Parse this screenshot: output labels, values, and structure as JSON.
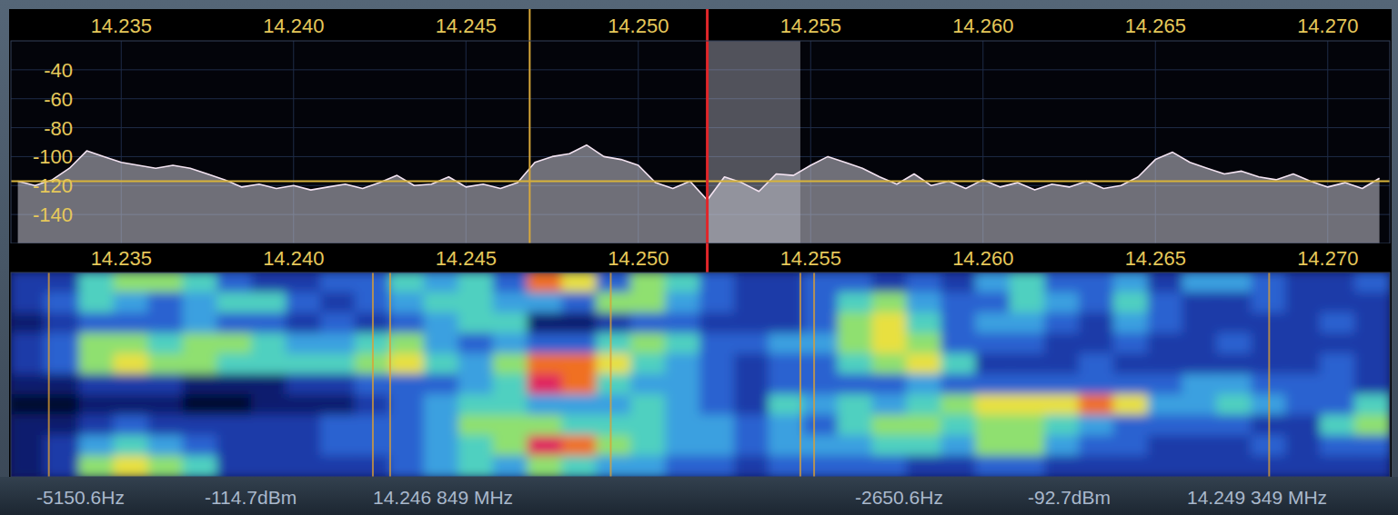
{
  "chart_data": [
    {
      "type": "line",
      "x": [
        14.232,
        14.2325,
        14.233,
        14.2335,
        14.234,
        14.2345,
        14.235,
        14.2355,
        14.236,
        14.2365,
        14.237,
        14.2375,
        14.238,
        14.2385,
        14.239,
        14.2395,
        14.24,
        14.2405,
        14.241,
        14.2415,
        14.242,
        14.2425,
        14.243,
        14.2435,
        14.244,
        14.2445,
        14.245,
        14.2455,
        14.246,
        14.2465,
        14.247,
        14.2475,
        14.248,
        14.2485,
        14.249,
        14.2495,
        14.25,
        14.2505,
        14.251,
        14.2515,
        14.252,
        14.2525,
        14.253,
        14.2535,
        14.254,
        14.2545,
        14.255,
        14.2555,
        14.256,
        14.2565,
        14.257,
        14.2575,
        14.258,
        14.2585,
        14.259,
        14.2595,
        14.26,
        14.2605,
        14.261,
        14.2615,
        14.262,
        14.2625,
        14.263,
        14.2635,
        14.264,
        14.2645,
        14.265,
        14.2655,
        14.266,
        14.2665,
        14.267,
        14.2675,
        14.268,
        14.2685,
        14.269,
        14.2695,
        14.27,
        14.2705,
        14.271,
        14.2715
      ],
      "values": [
        -117,
        -120,
        -116,
        -108,
        -96,
        -100,
        -104,
        -106,
        -108,
        -106,
        -108,
        -112,
        -116,
        -121,
        -119,
        -122,
        -120,
        -123,
        -121,
        -119,
        -122,
        -118,
        -113,
        -120,
        -119,
        -114,
        -121,
        -119,
        -122,
        -118,
        -104,
        -100,
        -98,
        -92,
        -100,
        -102,
        -106,
        -118,
        -122,
        -117,
        -130,
        -114,
        -118,
        -124,
        -112,
        -113,
        -106,
        -100,
        -104,
        -108,
        -114,
        -119,
        -112,
        -120,
        -117,
        -122,
        -116,
        -121,
        -118,
        -123,
        -119,
        -121,
        -117,
        -122,
        -120,
        -114,
        -102,
        -97,
        -104,
        -108,
        -112,
        -110,
        -114,
        -116,
        -112,
        -117,
        -121,
        -118,
        -122,
        -115
      ],
      "xlim": [
        14.2318,
        14.2718
      ],
      "ylim": [
        -160,
        -20
      ],
      "xticks": [
        14.235,
        {
          "value": 14.24,
          "label": "14.240"
        },
        14.245,
        {
          "value": 14.25,
          "label": "14.250"
        },
        14.255,
        {
          "value": 14.26,
          "label": "14.260"
        },
        14.265,
        {
          "value": 14.27,
          "label": "14.270"
        }
      ],
      "yticks": [
        -40,
        -60,
        -80,
        -100,
        -120,
        -140
      ],
      "grid": true,
      "color": "#f4e4f2",
      "cursor": 14.246849,
      "tuned": 14.252,
      "passband": [
        14.252,
        14.2547
      ],
      "threshold": -117
    },
    {
      "type": "heatmap",
      "x": [
        14.2323,
        14.2333,
        14.2343,
        14.2353,
        14.2363,
        14.2373,
        14.2383,
        14.2393,
        14.2403,
        14.2413,
        14.2423,
        14.2433,
        14.2443,
        14.2453,
        14.2463,
        14.2473,
        14.2483,
        14.2493,
        14.2503,
        14.2513,
        14.2523,
        14.2533,
        14.2543,
        14.2553,
        14.2563,
        14.2573,
        14.2583,
        14.2593,
        14.2603,
        14.2613,
        14.2623,
        14.2633,
        14.2643,
        14.2653,
        14.2663,
        14.2673,
        14.2683,
        14.2693,
        14.2703,
        14.2713
      ],
      "xlim": [
        14.2318,
        14.2718
      ],
      "xticks": [
        14.235,
        {
          "value": 14.24,
          "label": "14.240"
        },
        14.245,
        {
          "value": 14.25,
          "label": "14.250"
        },
        14.255,
        {
          "value": 14.26,
          "label": "14.260"
        },
        14.265,
        {
          "value": 14.27,
          "label": "14.270"
        }
      ],
      "zlim": [
        0,
        9
      ],
      "cells": [
        [
          2,
          2,
          5,
          6,
          6,
          5,
          3,
          2,
          2,
          3,
          3,
          5,
          4,
          5,
          3,
          8,
          7,
          3,
          6,
          5,
          3,
          2,
          2,
          3,
          3,
          2,
          3,
          2,
          4,
          5,
          3,
          3,
          4,
          2,
          4,
          4,
          3,
          2,
          2,
          3
        ],
        [
          2,
          3,
          5,
          4,
          3,
          4,
          5,
          5,
          3,
          2,
          3,
          4,
          5,
          5,
          4,
          4,
          3,
          6,
          6,
          4,
          3,
          2,
          2,
          3,
          5,
          6,
          4,
          3,
          3,
          5,
          4,
          3,
          5,
          3,
          2,
          2,
          3,
          2,
          2,
          2
        ],
        [
          1,
          2,
          3,
          3,
          3,
          4,
          3,
          3,
          2,
          3,
          2,
          3,
          4,
          5,
          5,
          1,
          1,
          2,
          3,
          3,
          2,
          2,
          2,
          3,
          6,
          7,
          5,
          3,
          4,
          4,
          3,
          2,
          4,
          3,
          2,
          2,
          2,
          2,
          3,
          2
        ],
        [
          2,
          3,
          6,
          6,
          5,
          6,
          6,
          5,
          4,
          4,
          5,
          6,
          4,
          3,
          4,
          3,
          3,
          5,
          6,
          5,
          3,
          3,
          4,
          4,
          6,
          7,
          6,
          3,
          3,
          3,
          2,
          2,
          3,
          2,
          2,
          3,
          2,
          2,
          2,
          2
        ],
        [
          2,
          3,
          6,
          7,
          6,
          6,
          5,
          5,
          5,
          5,
          6,
          7,
          5,
          4,
          6,
          8,
          8,
          7,
          5,
          4,
          3,
          2,
          3,
          3,
          5,
          6,
          7,
          5,
          2,
          2,
          2,
          3,
          2,
          2,
          2,
          2,
          2,
          2,
          3,
          2
        ],
        [
          1,
          1,
          2,
          2,
          2,
          1,
          1,
          1,
          2,
          2,
          3,
          3,
          3,
          4,
          5,
          9,
          8,
          5,
          4,
          4,
          3,
          2,
          3,
          3,
          3,
          3,
          4,
          3,
          3,
          3,
          3,
          3,
          3,
          3,
          4,
          4,
          3,
          3,
          3,
          2
        ],
        [
          0,
          0,
          1,
          1,
          1,
          0,
          0,
          1,
          1,
          1,
          2,
          3,
          4,
          5,
          5,
          4,
          4,
          4,
          5,
          4,
          3,
          2,
          5,
          4,
          5,
          4,
          5,
          6,
          7,
          7,
          7,
          8,
          7,
          4,
          4,
          5,
          4,
          3,
          3,
          5
        ],
        [
          1,
          1,
          2,
          3,
          2,
          2,
          2,
          2,
          2,
          3,
          3,
          3,
          4,
          6,
          6,
          6,
          5,
          5,
          5,
          4,
          4,
          3,
          4,
          3,
          5,
          6,
          6,
          5,
          6,
          6,
          5,
          4,
          3,
          3,
          3,
          3,
          2,
          2,
          5,
          6
        ],
        [
          1,
          2,
          4,
          5,
          4,
          3,
          2,
          2,
          2,
          3,
          3,
          3,
          4,
          5,
          6,
          9,
          8,
          6,
          5,
          4,
          4,
          3,
          4,
          4,
          4,
          5,
          5,
          4,
          6,
          6,
          4,
          3,
          3,
          2,
          2,
          2,
          3,
          2,
          3,
          3
        ],
        [
          1,
          2,
          6,
          7,
          6,
          5,
          2,
          2,
          2,
          2,
          2,
          3,
          4,
          5,
          4,
          6,
          5,
          4,
          4,
          3,
          3,
          2,
          3,
          3,
          3,
          3,
          2,
          2,
          3,
          3,
          2,
          2,
          2,
          2,
          2,
          2,
          2,
          2,
          2,
          2
        ]
      ],
      "carriers": [
        14.2329,
        14.2423,
        14.2428,
        14.2492,
        14.2547,
        14.2551,
        14.2683
      ],
      "tuned": 14.252
    }
  ],
  "status_bar": {
    "left": [
      "-5150.6Hz",
      "-114.7dBm",
      "14.246 849 MHz"
    ],
    "right": [
      "-2650.6Hz",
      "-92.7dBm",
      "14.249 349 MHz"
    ]
  }
}
